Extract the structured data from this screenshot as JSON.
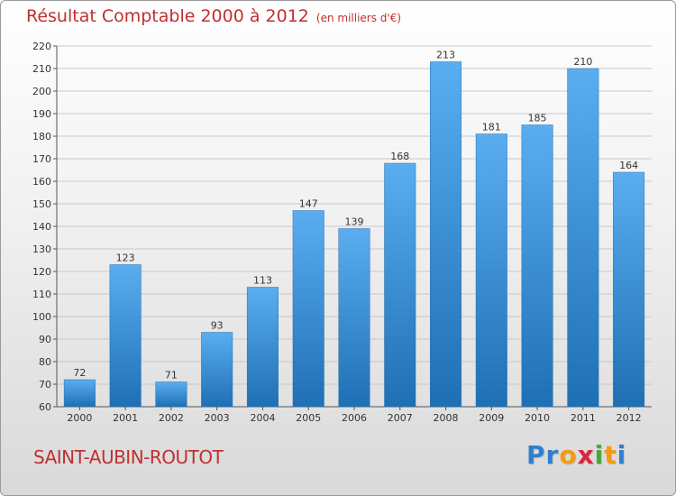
{
  "header": {
    "title": "Résultat Comptable 2000 à 2012",
    "subtitle": "(en milliers d'€)"
  },
  "footer": {
    "city": "SAINT-AUBIN-ROUTOT",
    "logo_letters": [
      "P",
      "r",
      "o",
      "x",
      "i",
      "t",
      "i"
    ],
    "logo_colors": [
      "#2f7fd0",
      "#2f7fd0",
      "#f39c12",
      "#d9263b",
      "#44aa33",
      "#f39c12",
      "#2f7fd0"
    ]
  },
  "colors": {
    "bar_top": "#5aaef0",
    "bar_bottom": "#1f6fb5",
    "grid": "#c8c8c8",
    "text": "#333333",
    "title": "#c03030"
  },
  "chart_data": {
    "type": "bar",
    "title": "Résultat Comptable 2000 à 2012",
    "xlabel": "",
    "ylabel": "",
    "categories": [
      "2000",
      "2001",
      "2002",
      "2003",
      "2004",
      "2005",
      "2006",
      "2007",
      "2008",
      "2009",
      "2010",
      "2011",
      "2012"
    ],
    "values": [
      72,
      123,
      71,
      93,
      113,
      147,
      139,
      168,
      213,
      181,
      185,
      210,
      164
    ],
    "ylim": [
      60,
      220
    ],
    "yticks": [
      60,
      70,
      80,
      90,
      100,
      110,
      120,
      130,
      140,
      150,
      160,
      170,
      180,
      190,
      200,
      210,
      220
    ],
    "grid": true
  }
}
